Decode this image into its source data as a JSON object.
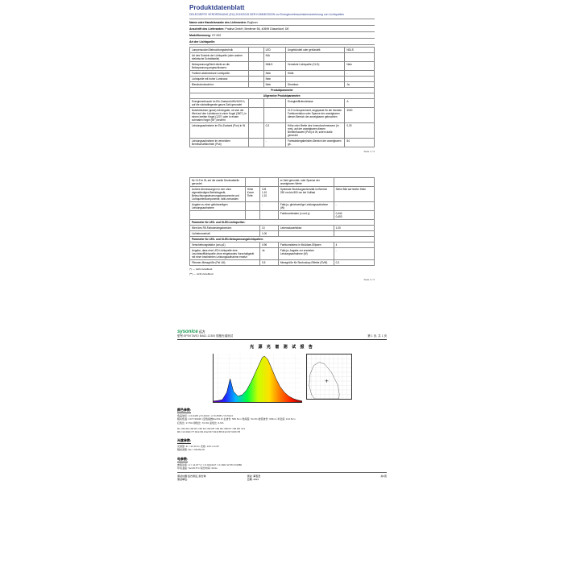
{
  "doc": {
    "title": "Produktdatenblatt",
    "subtitle": "DELEGIERTE VERORDNUNG (EU) 2019/2015 DER KOMMISSION zur Energieverbrauchskennzeichnung von Lichtquellen",
    "meta": [
      {
        "label": "Name oder Handelsmarke des Lieferanten:",
        "value": "Erglizon"
      },
      {
        "label": "Anschrift des Lieferanten:",
        "value": "Pratina GmbH, Benfener 56, 40599 Düsseldorf, DE"
      },
      {
        "label": "Modellkennung:",
        "value": "G7.002"
      },
      {
        "label": "Art der Lichtquelle:",
        "value": ""
      }
    ],
    "table1": {
      "rows": [
        [
          "Lampensockel-Beleuchtungstechnik",
          "",
          "LED",
          "Ungebündelt oder gebündelt:",
          "NDLS"
        ],
        [
          "Art des Sockels der Lichtquelle (oder andere elektrische Schnittstelle)",
          "",
          "N/A",
          "",
          ""
        ],
        [
          "Netzspannung/Nicht direkt an die Netzspannung angeschlossen:",
          "",
          "NMLS",
          "Vernetzte Lichtquelle (CLS):",
          "Nein"
        ],
        [
          "Farblich abstimmbare Lichtquelle:",
          "",
          "Nein",
          "Hülle:",
          "-"
        ],
        [
          "Lichtquelle mit hoher Luminanz:",
          "",
          "Nein",
          "",
          ""
        ],
        [
          "Blendschutzschirm:",
          "",
          "Nein",
          "Dimmbar:",
          "Ja"
        ]
      ]
    },
    "section1": "Produktparameter",
    "table2_head": "Allgemeine Produktparameter:",
    "table2": {
      "rows": [
        [
          "Energieverbrauch im Ein-Zustand kWh/1000 h, auf die nächstliegende ganze Zahl gerundet",
          "",
          "",
          "Energieeffizienzklasse",
          "A"
        ],
        [
          "Nutzlichtstrom (φuse) mit Angabe, ob sich der Wert auf den Lichtstrom in einer Kugel (360°), in einem breiten Kegel (120°) oder in einem schmalen Kegel (90°) bezieht",
          "",
          "",
          "CLS in Ansprechzeit, angepasst für die höchste Farbkorrelation oder Spanne der anzeigbaren diesen Bereich der anzeigbaren geleuchten",
          "3000"
        ],
        [
          "Leistungsaufnahme im Ein-Zustand (Pon) in W",
          "",
          "0,3",
          "Höhe oder Breite des Innendurchmessers (in mm), auf der anzeigbaren diesen Breitenfluxwert (Pon) in W, sofern dafür gerundet",
          "0,30"
        ],
        [
          "Leistungsaufnahme im vernetzten Bereitschaftsbetrieb (Psb)",
          "",
          "-",
          "Farbwiedergabeindex-Bereich der anzeigbaren ge-",
          "84"
        ]
      ]
    },
    "page_num_1": "Seite 1 / 2"
  },
  "doc2": {
    "table": {
      "rows": [
        [
          "für CLS in W, auf die zweite Dezimalstelle gerundet",
          "",
          "",
          "er Zahl gerundet, oder Spanne der anzeigbaren Werte",
          ""
        ],
        [
          "Außere Abmessungen in mm ohne eigenständiges Betriebsgerät, Beleuchtungssteuerungskomponente und Lichtquellenkomponente, falls vorhanden",
          "Höhe\nKurve\nTiefe",
          "125\n1,10\n1,10",
          "Spektrale Strahlungsintensität im Bereich 250 nm bis 800 nm bei Volllast",
          "Siehe Bild auf letzter Seite"
        ],
        [
          "Angabe zu einer gleichwertigen Leistungsaufnahme",
          "",
          "-",
          "Falls ja, gleichwertige Leistungsaufnahme (W)",
          "-"
        ],
        [
          "",
          "",
          "",
          "Farbkoordinaten (x und y)",
          "0,444\n0,403"
        ]
      ]
    },
    "section2": "Parameter für LED- und OLED-Lichtquellen:",
    "table_s2": {
      "rows": [
        [
          "Wert des R9-Farbwiedergabeindex",
          "13",
          "Lebensdauerfaktor",
          "1,00"
        ],
        [
          "Lichtstromerhalt",
          "1,00",
          "",
          ""
        ]
      ]
    },
    "section3": "Parameter für LED- und OLED-Netzspannungslichtquellen:",
    "table_s3": {
      "rows": [
        [
          "Verschiebungsfaktor (cos φ1)",
          "0,96",
          "Farbkonsistenz in McAdam-Ellipsen",
          "4"
        ],
        [
          "Angabe, dass eine LED-Lichtquelle eine Leuchtstofflichtquelle ohne eingebautes Vorschaltgerät mit einer bestimmten Leistungsaufnahme ersetzt",
          "Ja",
          "Falls ja, Angabe zur ersetzten Leistungsaufnahme (W)",
          "-"
        ],
        [
          "Flimmer-Messgröße (Pst LM)",
          "0,5",
          "Messgröße für Stroboskop-Effekte (SVM)",
          "0,3"
        ]
      ]
    },
    "footnotes": [
      "(*) — nicht zutreffend",
      "(**) — nicht zutreffend"
    ],
    "page_num_2": "Seite 2 / 2"
  },
  "report": {
    "brand": "sysonice",
    "brand_cn": "远方",
    "model_line": "型号:SPEKTARO BA62-12300 规格光谱测试",
    "doc_no": "第 1 页, 共 1 页",
    "title": "光 源 光 谱 测 试 报 告",
    "spectrum": {
      "xrange": [
        380,
        780
      ],
      "peaks": [
        455,
        600
      ],
      "rainbow": [
        "#6a00a8",
        "#2222ff",
        "#00b7ff",
        "#00ff3c",
        "#c8ff00",
        "#ffe000",
        "#ff7800",
        "#ff1a00",
        "#8b0000"
      ],
      "curve_color": "#000000",
      "curve": [
        [
          380,
          0.02
        ],
        [
          400,
          0.03
        ],
        [
          420,
          0.05
        ],
        [
          440,
          0.2
        ],
        [
          455,
          0.48
        ],
        [
          470,
          0.22
        ],
        [
          490,
          0.12
        ],
        [
          510,
          0.15
        ],
        [
          530,
          0.25
        ],
        [
          550,
          0.42
        ],
        [
          570,
          0.62
        ],
        [
          590,
          0.82
        ],
        [
          600,
          0.92
        ],
        [
          610,
          0.95
        ],
        [
          625,
          0.88
        ],
        [
          640,
          0.72
        ],
        [
          660,
          0.5
        ],
        [
          680,
          0.32
        ],
        [
          700,
          0.2
        ],
        [
          720,
          0.12
        ],
        [
          740,
          0.07
        ],
        [
          760,
          0.04
        ],
        [
          780,
          0.02
        ]
      ]
    },
    "cie": {
      "grid_color": "#cccccc",
      "locus_color": "#333333",
      "point": [
        0.444,
        0.403
      ],
      "point_color": "#000000"
    },
    "sections": {
      "color_params": "颜色参数:",
      "color_text": "色品坐标: x=0.4445 y=0.4034 / u'=0.2505 v'=0.5144\n相关色温: CCT=3002K  (显色指数Ra=84.0)  主波长: 580.5nm  色纯度: 54.2%  峰值波长: 603nm  半宽度: 134.5nm\n红色比: 17.5%  绿色比: 76.0%  蓝色比: 6.5%",
      "ri_line": "R1 =83  R2 =90  R3 =95  R4 =82  R5 =83  R6 =88  R7 =86  R8 =64\nR9 =13  R10=77  R11=81  R12=67  R13=85  R14=97  R15=78",
      "photo_params": "光度参数:",
      "photo_text": "光通量: Φ = 22.26 lm   光效: 139.1 lm/W\n辐射通量: Φe = 68.05mW",
      "elec_params": "电参数:",
      "elec_text": "参照功率: U = 11.97 V   I = 0.0134A   P = 0.1601 W   PF=0.9986\n环境温度: Ta=25.5°C  积分时间: 30.0s"
    },
    "footer": {
      "inst": "测试仪器:远方测试_积分球\n测试单位:",
      "op": "测试: 审查员\n日期: 2024",
      "page": "共1页"
    }
  }
}
